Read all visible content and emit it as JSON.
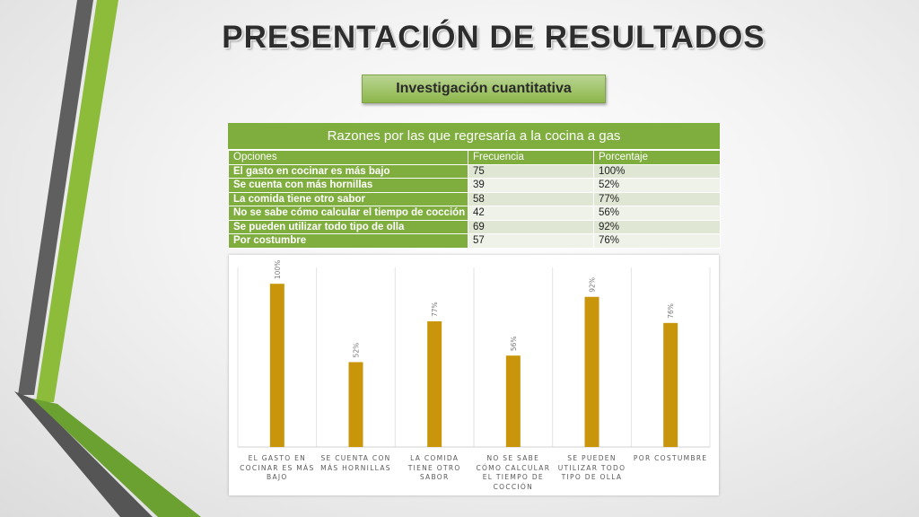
{
  "slide": {
    "title": "PRESENTACIÓN DE RESULTADOS",
    "subtitle": "Investigación cuantitativa"
  },
  "table": {
    "title": "Razones por las que regresaría a la cocina a gas",
    "headers": [
      "Opciones",
      "Frecuencia",
      "Porcentaje"
    ],
    "rows": [
      [
        "El gasto en cocinar es más bajo",
        "75",
        "100%"
      ],
      [
        "Se cuenta con más hornillas",
        "39",
        "52%"
      ],
      [
        "La comida tiene otro sabor",
        "58",
        "77%"
      ],
      [
        "No se sabe cómo calcular el tiempo de cocción",
        "42",
        "56%"
      ],
      [
        "Se pueden utilizar todo tipo de olla",
        "69",
        "92%"
      ],
      [
        "Por costumbre",
        "57",
        "76%"
      ]
    ]
  },
  "colors": {
    "accent_green": "#7fae3e",
    "bar": "#c9950b",
    "deco_gray": "#595959"
  },
  "chart_data": {
    "type": "bar",
    "categories": [
      "EL GASTO EN COCINAR ES MÁS BAJO",
      "SE CUENTA CON MÁS HORNILLAS",
      "LA COMIDA TIENE OTRO SABOR",
      "NO SE SABE CÓMO CALCULAR EL TIEMPO DE COCCIÓN",
      "SE PUEDEN UTILIZAR TODO TIPO DE OLLA",
      "POR COSTUMBRE"
    ],
    "values": [
      100,
      52,
      77,
      56,
      92,
      76
    ],
    "data_labels": [
      "100%",
      "52%",
      "77%",
      "56%",
      "92%",
      "76%"
    ],
    "title": "",
    "xlabel": "",
    "ylabel": "",
    "ylim": [
      0,
      110
    ],
    "grid": "vertical separators",
    "legend": "none"
  }
}
